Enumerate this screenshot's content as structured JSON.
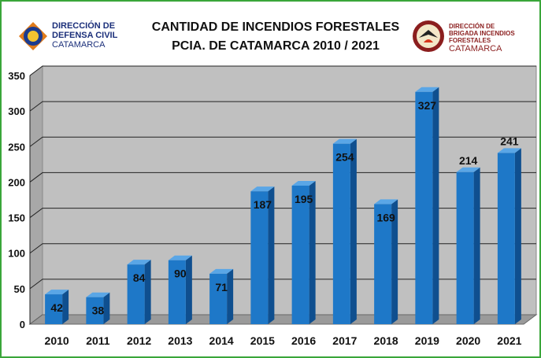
{
  "header": {
    "title_line1": "CANTIDAD DE INCENDIOS FORESTALES",
    "title_line2": "PCIA. DE CATAMARCA 2010 / 2021"
  },
  "logo_left": {
    "line1": "DIRECCIÓN DE",
    "line2": "DEFENSA CIVIL",
    "line3": "CATAMARCA"
  },
  "logo_right": {
    "line1": "DIRECCIÓN DE",
    "line2": "BRIGADA INCENDIOS",
    "line3": "FORESTALES",
    "line4": "CATAMARCA"
  },
  "colors": {
    "bar": "#1e78c8",
    "bar_side": "#0f4f8f",
    "bar_top": "#5aa6e6",
    "plot_back": "#c0c0c0",
    "floor": "#9a9a9a",
    "frame": "#3aa63a"
  },
  "chart_data": {
    "type": "bar",
    "title": "CANTIDAD DE INCENDIOS FORESTALES PCIA. DE CATAMARCA 2010 / 2021",
    "categories": [
      "2010",
      "2011",
      "2012",
      "2013",
      "2014",
      "2015",
      "2016",
      "2017",
      "2018",
      "2019",
      "2020",
      "2021"
    ],
    "values": [
      42,
      38,
      84,
      90,
      71,
      187,
      195,
      254,
      169,
      327,
      214,
      241
    ],
    "ylim": [
      0,
      350
    ],
    "yticks": [
      0,
      50,
      100,
      150,
      200,
      250,
      300,
      350
    ],
    "grid": true,
    "legend": "none",
    "style": "3d-column"
  }
}
